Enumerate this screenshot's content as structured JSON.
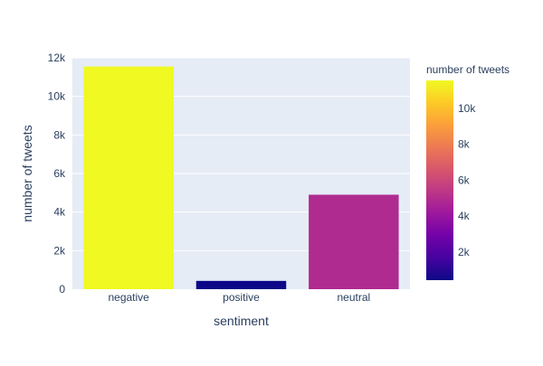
{
  "chart_data": {
    "type": "bar",
    "title": "",
    "xlabel": "sentiment",
    "ylabel": "number of tweets",
    "categories": [
      "negative",
      "positive",
      "neutral"
    ],
    "values": [
      11550,
      430,
      4900
    ],
    "ylim": [
      0,
      12000
    ],
    "y_ticks": [
      0,
      2000,
      4000,
      6000,
      8000,
      10000,
      12000
    ],
    "y_tick_labels": [
      "0",
      "2k",
      "4k",
      "6k",
      "8k",
      "10k",
      "12k"
    ],
    "grid": true,
    "colorbar": {
      "title": "number of tweets",
      "range": [
        430,
        11550
      ],
      "ticks": [
        2000,
        4000,
        6000,
        8000,
        10000
      ],
      "tick_labels": [
        "2k",
        "4k",
        "6k",
        "8k",
        "10k"
      ],
      "colorscale": [
        "#0d0887",
        "#46039f",
        "#7201a8",
        "#9c179e",
        "#bd3786",
        "#d8576b",
        "#ed7953",
        "#fb9f3a",
        "#fdca26",
        "#f0f921"
      ]
    },
    "plot_background": "#e5ecf6",
    "gridline_color": "#ffffff",
    "text_color": "#2a3f5f"
  }
}
